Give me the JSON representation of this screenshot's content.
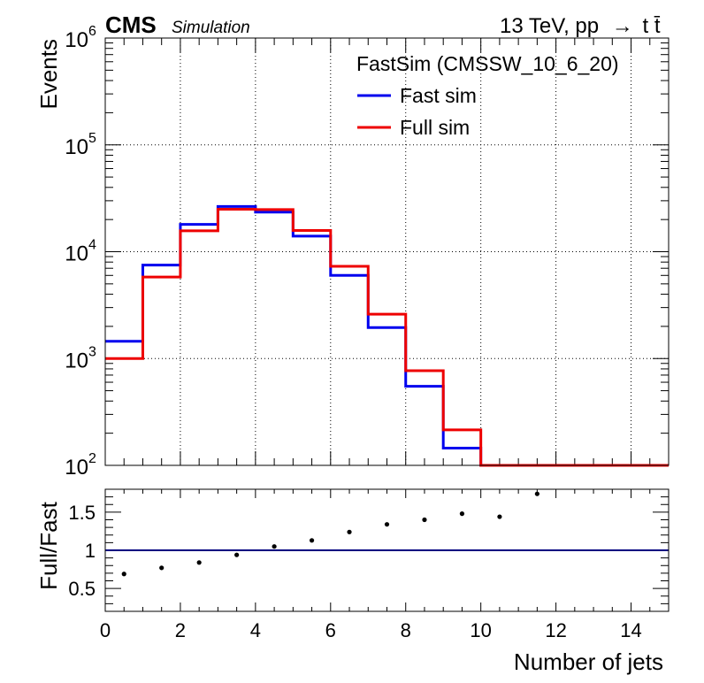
{
  "header": {
    "experiment": "CMS",
    "label": "Simulation",
    "energy": "13 TeV, pp",
    "arrow": "→",
    "process": "t",
    "process_bar": "t̄"
  },
  "colors": {
    "fast_sim": "#0000ee",
    "full_sim": "#ee0000",
    "ratio_line": "#000080",
    "points": "#000000",
    "grid": "#000000"
  },
  "chart_data": [
    {
      "type": "line",
      "subtype": "step-histogram",
      "xlabel": "Number of jets",
      "ylabel": "Events",
      "yscale": "log",
      "xlim": [
        0,
        15
      ],
      "ylim": [
        100,
        1000000
      ],
      "grid": true,
      "legend_title": "FastSim (CMSSW_10_6_20)",
      "legend_position": "top-right",
      "bin_edges": [
        0,
        1,
        2,
        3,
        4,
        5,
        6,
        7,
        8,
        9,
        10,
        11,
        12,
        13,
        14,
        15
      ],
      "series": [
        {
          "name": "Fast sim",
          "color": "#0000ee",
          "values": [
            1450,
            7500,
            18000,
            26500,
            23500,
            14000,
            6000,
            1950,
            550,
            145,
            100,
            100,
            100,
            100,
            100
          ]
        },
        {
          "name": "Full sim",
          "color": "#ee0000",
          "values": [
            1000,
            5800,
            15700,
            25000,
            24800,
            15800,
            7300,
            2600,
            770,
            215,
            100,
            100,
            100,
            100,
            100
          ]
        }
      ],
      "yticks": [
        {
          "base": "10",
          "exp": "2"
        },
        {
          "base": "10",
          "exp": "3"
        },
        {
          "base": "10",
          "exp": "4"
        },
        {
          "base": "10",
          "exp": "5"
        },
        {
          "base": "10",
          "exp": "6"
        }
      ]
    },
    {
      "type": "scatter",
      "xlabel": "Number of jets",
      "ylabel": "Full/Fast",
      "xlim": [
        0,
        15
      ],
      "ylim": [
        0.2,
        1.8
      ],
      "reference_line": 1,
      "x": [
        0.5,
        1.5,
        2.5,
        3.5,
        4.5,
        5.5,
        6.5,
        7.5,
        8.5,
        9.5,
        10.5,
        11.5
      ],
      "y": [
        0.69,
        0.77,
        0.84,
        0.94,
        1.05,
        1.13,
        1.24,
        1.34,
        1.4,
        1.48,
        1.44,
        1.74
      ],
      "xticks": [
        "0",
        "2",
        "4",
        "6",
        "8",
        "10",
        "12",
        "14"
      ],
      "yticks": [
        "0.5",
        "1",
        "1.5"
      ]
    }
  ]
}
